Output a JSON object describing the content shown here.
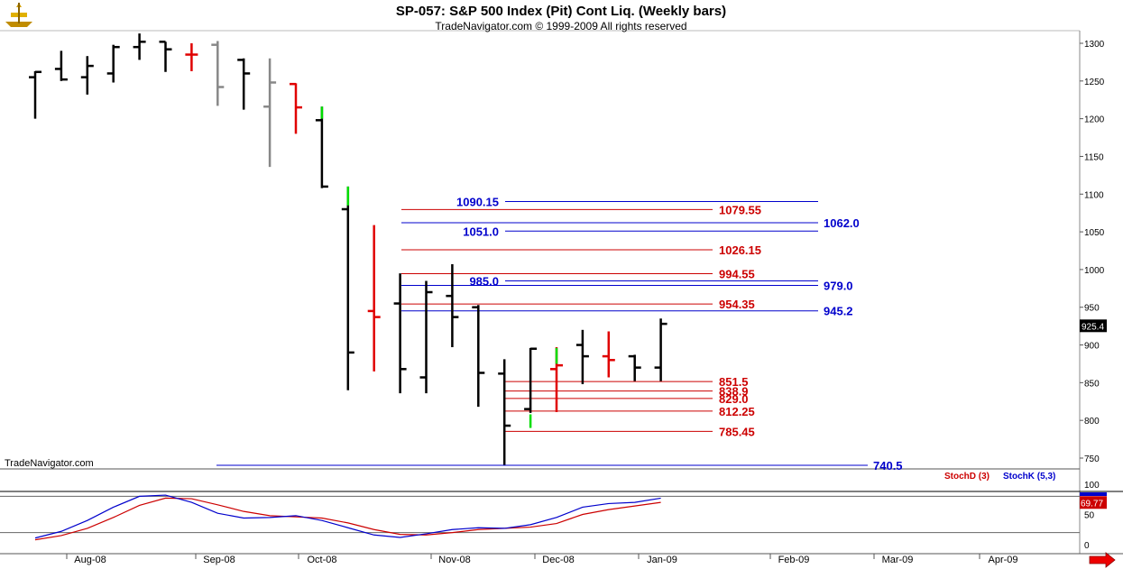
{
  "header": {
    "title": "SP-057:  S&P 500 Index (Pit) Cont Liq.  (Weekly bars)",
    "subtitle": "TradeNavigator.com © 1999-2009 All rights reserved",
    "watermark": "TradeNavigator.com"
  },
  "colors": {
    "up": "#000000",
    "down_red": "#e00000",
    "inside_gray": "#888888",
    "green": "#00dd00",
    "level_red": "#cc0000",
    "level_blue": "#0000cc",
    "stochd": "#cc0000",
    "stochk": "#0000cc"
  },
  "chart_data": [
    {
      "type": "ohlc",
      "x_labels": [
        "Aug-08",
        "Sep-08",
        "Oct-08",
        "Nov-08",
        "Dec-08",
        "Jan-09",
        "Feb-09",
        "Mar-09",
        "Apr-09"
      ],
      "y_ticks": [
        750,
        800,
        850,
        900,
        950,
        1000,
        1050,
        1100,
        1150,
        1200,
        1250,
        1300
      ],
      "ylim": [
        728,
        1317
      ],
      "last_price": "925.4",
      "bars": [
        {
          "i": 0,
          "o": 1255,
          "h": 1263,
          "l": 1200,
          "c": 1262,
          "color": "black"
        },
        {
          "i": 1,
          "o": 1266,
          "h": 1290,
          "l": 1250,
          "c": 1252,
          "color": "black"
        },
        {
          "i": 2,
          "o": 1255,
          "h": 1283,
          "l": 1232,
          "c": 1270,
          "color": "black"
        },
        {
          "i": 3,
          "o": 1260,
          "h": 1298,
          "l": 1248,
          "c": 1295,
          "color": "black"
        },
        {
          "i": 4,
          "o": 1295,
          "h": 1313,
          "l": 1278,
          "c": 1302,
          "color": "black"
        },
        {
          "i": 5,
          "o": 1302,
          "h": 1302,
          "l": 1262,
          "c": 1292,
          "color": "black"
        },
        {
          "i": 6,
          "o": 1285,
          "h": 1300,
          "l": 1263,
          "c": 1285,
          "color": "red"
        },
        {
          "i": 7,
          "o": 1298,
          "h": 1303,
          "l": 1217,
          "c": 1242,
          "color": "gray"
        },
        {
          "i": 8,
          "o": 1278,
          "h": 1280,
          "l": 1212,
          "c": 1260,
          "color": "black"
        },
        {
          "i": 9,
          "o": 1216,
          "h": 1280,
          "l": 1136,
          "c": 1248,
          "color": "gray"
        },
        {
          "i": 10,
          "o": 1246,
          "h": 1247,
          "l": 1180,
          "c": 1215,
          "color": "red"
        },
        {
          "i": 11,
          "o": 1198,
          "h": 1216,
          "l": 1108,
          "c": 1110,
          "color": "black"
        },
        {
          "i": 12,
          "o": 1080,
          "h": 1110,
          "l": 840,
          "c": 890,
          "color": "black"
        },
        {
          "i": 13,
          "o": 945,
          "h": 1059,
          "l": 865,
          "c": 937,
          "color": "red"
        },
        {
          "i": 14,
          "o": 955,
          "h": 995,
          "l": 836,
          "c": 868,
          "color": "black"
        },
        {
          "i": 15,
          "o": 857,
          "h": 985,
          "l": 836,
          "c": 970,
          "color": "black"
        },
        {
          "i": 16,
          "o": 965,
          "h": 1007,
          "l": 897,
          "c": 937,
          "color": "black"
        },
        {
          "i": 17,
          "o": 950,
          "h": 953,
          "l": 818,
          "c": 863,
          "color": "black"
        },
        {
          "i": 18,
          "o": 862,
          "h": 881,
          "l": 741,
          "c": 793,
          "color": "black"
        },
        {
          "i": 19,
          "o": 815,
          "h": 896,
          "l": 810,
          "c": 895,
          "color": "black"
        },
        {
          "i": 20,
          "o": 868,
          "h": 897,
          "l": 811,
          "c": 873,
          "color": "red"
        },
        {
          "i": 21,
          "o": 900,
          "h": 920,
          "l": 848,
          "c": 885,
          "color": "black"
        },
        {
          "i": 22,
          "o": 885,
          "h": 918,
          "l": 857,
          "c": 880,
          "color": "red"
        },
        {
          "i": 23,
          "o": 885,
          "h": 887,
          "l": 852,
          "c": 870,
          "color": "black"
        },
        {
          "i": 24,
          "o": 870,
          "h": 935,
          "l": 852,
          "c": 928,
          "color": "black"
        }
      ],
      "green_ticks": [
        {
          "i": 11,
          "from": 1200,
          "to": 1216
        },
        {
          "i": 12,
          "from": 1085,
          "to": 1110
        },
        {
          "i": 19,
          "from": 790,
          "to": 808
        },
        {
          "i": 20,
          "from": 875,
          "to": 896
        }
      ],
      "red_levels": [
        {
          "value": 1079.55,
          "label": "1079.55"
        },
        {
          "value": 1026.15,
          "label": "1026.15"
        },
        {
          "value": 994.55,
          "label": "994.55"
        },
        {
          "value": 954.35,
          "label": "954.35"
        },
        {
          "value": 851.5,
          "label": "851.5"
        },
        {
          "value": 838.9,
          "label": "838.9"
        },
        {
          "value": 829.0,
          "label": "829.0"
        },
        {
          "value": 812.25,
          "label": "812.25"
        },
        {
          "value": 785.45,
          "label": "785.45"
        }
      ],
      "blue_levels": [
        {
          "value": 1090.15,
          "label": "1090.15",
          "label_side": "left"
        },
        {
          "value": 1062.0,
          "label": "1062.0",
          "label_side": "right"
        },
        {
          "value": 1051.0,
          "label": "1051.0",
          "label_side": "left"
        },
        {
          "value": 985.0,
          "label": "985.0",
          "label_side": "left"
        },
        {
          "value": 979.0,
          "label": "979.0",
          "label_side": "right"
        },
        {
          "value": 945.2,
          "label": "945.2",
          "label_side": "right"
        },
        {
          "value": 740.5,
          "label": "740.5",
          "label_side": "right"
        }
      ]
    },
    {
      "type": "line",
      "legend": [
        {
          "name": "StochD (3)",
          "color": "#cc0000"
        },
        {
          "name": "StochK (5,3)",
          "color": "#0000cc"
        }
      ],
      "y_ticks": [
        0,
        50,
        100
      ],
      "ylim": [
        -5,
        115
      ],
      "ref_lines": [
        20,
        80
      ],
      "last_value": "69.77",
      "stochK": [
        11,
        22,
        40,
        62,
        80,
        82,
        70,
        52,
        44,
        45,
        48,
        40,
        28,
        16,
        12,
        18,
        25,
        28,
        27,
        33,
        45,
        62,
        68,
        70,
        77
      ],
      "stochD": [
        8,
        15,
        27,
        45,
        65,
        77,
        76,
        66,
        55,
        48,
        46,
        44,
        36,
        25,
        17,
        16,
        20,
        25,
        27,
        29,
        35,
        50,
        58,
        64,
        70
      ]
    }
  ]
}
